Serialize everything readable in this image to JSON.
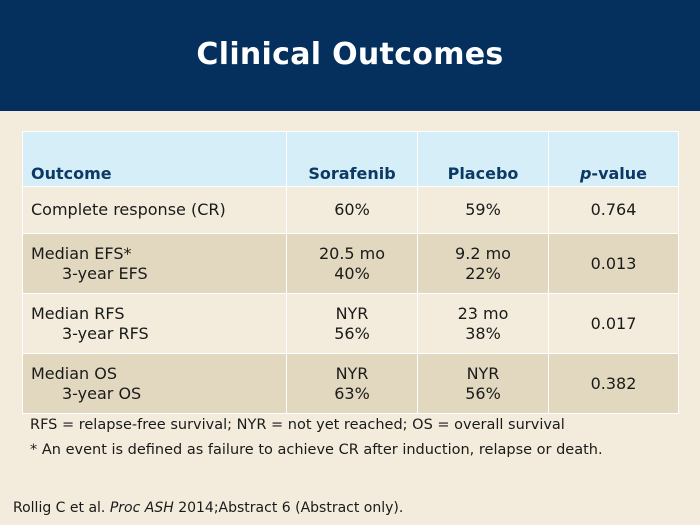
{
  "slide": {
    "title": "Clinical Outcomes"
  },
  "table": {
    "headers": [
      "Outcome",
      "Sorafenib",
      "Placebo",
      "p",
      "-value"
    ],
    "rows": [
      {
        "label": "Complete response (CR)",
        "sorafenib": "60%",
        "placebo": "59%",
        "pvalue": "0.764"
      },
      {
        "label": "Median EFS*",
        "sublabel": "3-year EFS",
        "sorafenib": "20.5 mo",
        "sorafenib_sub": "40%",
        "placebo": "9.2 mo",
        "placebo_sub": "22%",
        "pvalue": "0.013"
      },
      {
        "label": "Median RFS",
        "sublabel": "3-year RFS",
        "sorafenib": "NYR",
        "sorafenib_sub": "56%",
        "placebo": "23 mo",
        "placebo_sub": "38%",
        "pvalue": "0.017"
      },
      {
        "label": "Median OS",
        "sublabel": "3-year OS",
        "sorafenib": "NYR",
        "sorafenib_sub": "63%",
        "placebo": "NYR",
        "placebo_sub": "56%",
        "pvalue": "0.382"
      }
    ]
  },
  "footnotes": {
    "abbreviations": "RFS = relapse-free survival; NYR = not yet reached; OS = overall survival",
    "event_definition": "* An event is defined as failure to achieve CR after induction, relapse or death."
  },
  "citation": {
    "authors": "Rollig C et al.",
    "journal": "Proc ASH",
    "details": "2014;Abstract 6 (Abstract only)."
  },
  "colors": {
    "header_bg": "#05305e",
    "table_header_bg": "#d6eef7",
    "row_light": "#f3ecdc",
    "row_dark": "#e1d8bf",
    "header_text": "#0c3a66"
  }
}
